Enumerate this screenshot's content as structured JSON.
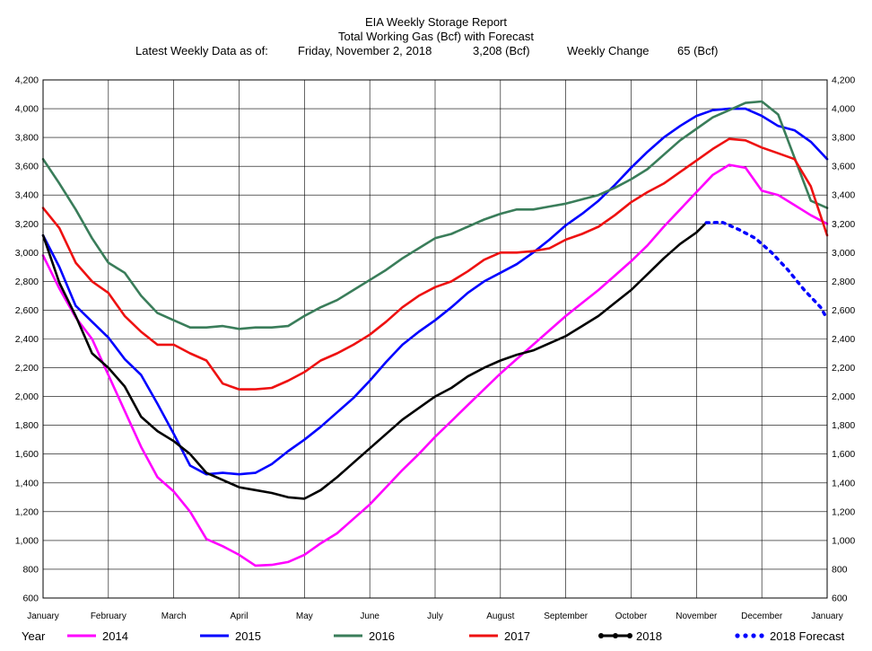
{
  "header": {
    "line1": "EIA Weekly Storage Report",
    "line2": "Total Working Gas (Bcf) with Forecast",
    "latest_label": "Latest Weekly Data as of:",
    "latest_date": "Friday, November 2, 2018",
    "latest_value": "3,208 (Bcf)",
    "change_label": "Weekly Change",
    "change_value": "65 (Bcf)"
  },
  "legend": {
    "year_label": "Year"
  },
  "chart_data": {
    "type": "line",
    "title": "Total Working Gas (Bcf) with Forecast",
    "ylim": [
      600,
      4200
    ],
    "y_ticks": [
      600,
      800,
      1000,
      1200,
      1400,
      1600,
      1800,
      2000,
      2200,
      2400,
      2600,
      2800,
      3000,
      3200,
      3400,
      3600,
      3800,
      4000,
      4200
    ],
    "y_tick_labels": [
      "600",
      "800",
      "1,000",
      "1,200",
      "1,400",
      "1,600",
      "1,800",
      "2,000",
      "2,200",
      "2,400",
      "2,600",
      "2,800",
      "3,000",
      "3,200",
      "3,400",
      "3,600",
      "3,800",
      "4,000",
      "4,200"
    ],
    "x_unit": "month (0 = start of January)",
    "xlim": [
      0,
      12
    ],
    "x_ticks": [
      "January",
      "February",
      "March",
      "April",
      "May",
      "June",
      "July",
      "August",
      "September",
      "October",
      "November",
      "December",
      "January"
    ],
    "grid": true,
    "legend_position": "bottom",
    "series": [
      {
        "name": "2014",
        "color": "#ff00ff",
        "style": "solid",
        "marker": "none",
        "x": [
          0,
          0.25,
          0.5,
          0.75,
          1,
          1.25,
          1.5,
          1.75,
          2,
          2.25,
          2.5,
          2.75,
          3,
          3.25,
          3.5,
          3.75,
          4,
          4.25,
          4.5,
          4.75,
          5,
          5.25,
          5.5,
          5.75,
          6,
          6.25,
          6.5,
          6.75,
          7,
          7.25,
          7.5,
          7.75,
          8,
          8.25,
          8.5,
          8.75,
          9,
          9.25,
          9.5,
          9.75,
          10,
          10.25,
          10.5,
          10.75,
          11,
          11.25,
          11.5,
          11.75,
          12
        ],
        "y": [
          2980,
          2750,
          2550,
          2400,
          2150,
          1900,
          1650,
          1440,
          1340,
          1200,
          1010,
          960,
          900,
          825,
          830,
          850,
          900,
          980,
          1050,
          1150,
          1250,
          1370,
          1490,
          1600,
          1720,
          1830,
          1940,
          2050,
          2160,
          2260,
          2360,
          2460,
          2560,
          2650,
          2740,
          2840,
          2940,
          3050,
          3180,
          3300,
          3420,
          3540,
          3610,
          3590,
          3430,
          3400,
          3330,
          3260,
          3200
        ]
      },
      {
        "name": "2015",
        "color": "#0000ff",
        "style": "solid",
        "marker": "none",
        "x": [
          0,
          0.25,
          0.5,
          0.75,
          1,
          1.25,
          1.5,
          1.75,
          2,
          2.25,
          2.5,
          2.75,
          3,
          3.25,
          3.5,
          3.75,
          4,
          4.25,
          4.5,
          4.75,
          5,
          5.25,
          5.5,
          5.75,
          6,
          6.25,
          6.5,
          6.75,
          7,
          7.25,
          7.5,
          7.75,
          8,
          8.25,
          8.5,
          8.75,
          9,
          9.25,
          9.5,
          9.75,
          10,
          10.25,
          10.5,
          10.75,
          11,
          11.25,
          11.5,
          11.75,
          12
        ],
        "y": [
          3120,
          2900,
          2630,
          2520,
          2410,
          2260,
          2150,
          1950,
          1740,
          1520,
          1460,
          1470,
          1460,
          1470,
          1530,
          1620,
          1700,
          1790,
          1890,
          1990,
          2110,
          2240,
          2360,
          2450,
          2530,
          2620,
          2720,
          2800,
          2860,
          2920,
          3000,
          3090,
          3190,
          3270,
          3360,
          3470,
          3590,
          3700,
          3800,
          3880,
          3950,
          3990,
          4000,
          4000,
          3950,
          3880,
          3850,
          3770,
          3650
        ]
      },
      {
        "name": "2016",
        "color": "#3a7d5a",
        "style": "solid",
        "marker": "none",
        "x": [
          0,
          0.25,
          0.5,
          0.75,
          1,
          1.25,
          1.5,
          1.75,
          2,
          2.25,
          2.5,
          2.75,
          3,
          3.25,
          3.5,
          3.75,
          4,
          4.25,
          4.5,
          4.75,
          5,
          5.25,
          5.5,
          5.75,
          6,
          6.25,
          6.5,
          6.75,
          7,
          7.25,
          7.5,
          7.75,
          8,
          8.25,
          8.5,
          8.75,
          9,
          9.25,
          9.5,
          9.75,
          10,
          10.25,
          10.5,
          10.75,
          11,
          11.25,
          11.5,
          11.75,
          12
        ],
        "y": [
          3650,
          3480,
          3300,
          3100,
          2930,
          2860,
          2700,
          2580,
          2530,
          2480,
          2480,
          2490,
          2470,
          2480,
          2480,
          2490,
          2560,
          2620,
          2670,
          2740,
          2810,
          2880,
          2960,
          3030,
          3100,
          3130,
          3180,
          3230,
          3270,
          3300,
          3300,
          3320,
          3340,
          3370,
          3400,
          3450,
          3510,
          3580,
          3680,
          3780,
          3860,
          3940,
          3990,
          4040,
          4050,
          3960,
          3660,
          3360,
          3310
        ]
      },
      {
        "name": "2017",
        "color": "#ee1111",
        "style": "solid",
        "marker": "none",
        "x": [
          0,
          0.25,
          0.5,
          0.75,
          1,
          1.25,
          1.5,
          1.75,
          2,
          2.25,
          2.5,
          2.75,
          3,
          3.25,
          3.5,
          3.75,
          4,
          4.25,
          4.5,
          4.75,
          5,
          5.25,
          5.5,
          5.75,
          6,
          6.25,
          6.5,
          6.75,
          7,
          7.25,
          7.5,
          7.75,
          8,
          8.25,
          8.5,
          8.75,
          9,
          9.25,
          9.5,
          9.75,
          10,
          10.25,
          10.5,
          10.75,
          11,
          11.25,
          11.5,
          11.75,
          12
        ],
        "y": [
          3310,
          3170,
          2930,
          2800,
          2720,
          2560,
          2450,
          2360,
          2360,
          2300,
          2250,
          2090,
          2050,
          2050,
          2060,
          2110,
          2170,
          2250,
          2300,
          2360,
          2430,
          2520,
          2620,
          2700,
          2760,
          2800,
          2870,
          2950,
          3000,
          3000,
          3010,
          3030,
          3090,
          3130,
          3180,
          3260,
          3350,
          3420,
          3480,
          3560,
          3640,
          3720,
          3790,
          3780,
          3730,
          3690,
          3650,
          3460,
          3120
        ]
      },
      {
        "name": "2018",
        "color": "#000000",
        "style": "solid",
        "marker": "dot",
        "x": [
          0,
          0.25,
          0.5,
          0.75,
          1,
          1.25,
          1.5,
          1.75,
          2,
          2.25,
          2.5,
          2.75,
          3,
          3.25,
          3.5,
          3.75,
          4,
          4.25,
          4.5,
          4.75,
          5,
          5.25,
          5.5,
          5.75,
          6,
          6.25,
          6.5,
          6.75,
          7,
          7.25,
          7.5,
          7.75,
          8,
          8.25,
          8.5,
          8.75,
          9,
          9.25,
          9.5,
          9.75,
          10,
          10.15
        ],
        "y": [
          3120,
          2790,
          2560,
          2300,
          2200,
          2070,
          1860,
          1760,
          1690,
          1600,
          1470,
          1420,
          1370,
          1350,
          1330,
          1300,
          1290,
          1350,
          1440,
          1540,
          1640,
          1740,
          1840,
          1920,
          2000,
          2060,
          2140,
          2200,
          2250,
          2290,
          2320,
          2370,
          2420,
          2490,
          2560,
          2650,
          2740,
          2850,
          2960,
          3060,
          3140,
          3208
        ]
      },
      {
        "name": "2018 Forecast",
        "color": "#0000ff",
        "style": "dotted",
        "marker": "dot",
        "x": [
          10.15,
          10.4,
          10.65,
          10.9,
          11.15,
          11.4,
          11.65,
          11.9,
          12
        ],
        "y": [
          3208,
          3210,
          3160,
          3100,
          3000,
          2880,
          2740,
          2620,
          2540
        ]
      }
    ]
  }
}
